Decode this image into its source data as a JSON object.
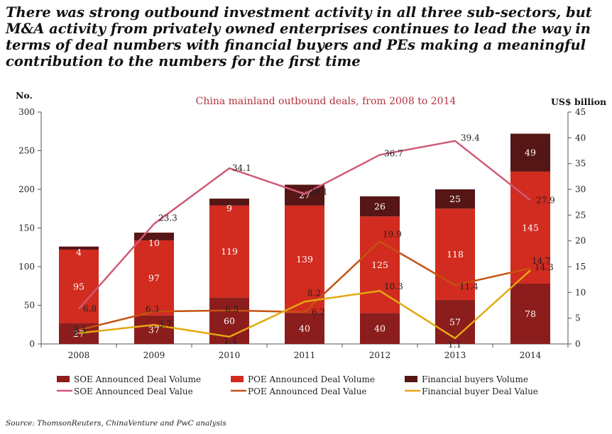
{
  "headline": "There was strong outbound investment activity in all three sub-sectors, but M&A activity from privately owned enterprises continues to lead the way in terms of deal numbers with financial buyers and PEs making a meaningful contribution to the numbers for the first time",
  "source": "Source: ThomsonReuters, ChinaVenture and PwC analysis",
  "chart_data": {
    "type": "bar",
    "title": "China mainland outbound deals, from 2008 to 2014",
    "ylabel_left": "No.",
    "ylabel_right": "US$ billion",
    "ylim_left": [
      0,
      300
    ],
    "ylim_right": [
      0,
      45
    ],
    "yticks_left": [
      0,
      50,
      100,
      150,
      200,
      250,
      300
    ],
    "yticks_right": [
      0,
      5,
      10,
      15,
      20,
      25,
      30,
      35,
      40,
      45
    ],
    "grid": false,
    "legend_position": "bottom",
    "categories": [
      "2008",
      "2009",
      "2010",
      "2011",
      "2012",
      "2013",
      "2014"
    ],
    "stacked_series": [
      {
        "name": "SOE Announced Deal Volume",
        "color": "#8c1d1d",
        "values": [
          27,
          37,
          60,
          40,
          40,
          57,
          78
        ]
      },
      {
        "name": "POE Announced Deal Volume",
        "color": "#d22b1f",
        "values": [
          95,
          97,
          119,
          139,
          125,
          118,
          145
        ]
      },
      {
        "name": "Financial buyers Volume",
        "color": "#561616",
        "values": [
          4,
          10,
          9,
          27,
          26,
          25,
          49
        ]
      }
    ],
    "line_series": [
      {
        "name": "SOE Announced Deal Value",
        "color": "#d05a75",
        "values": [
          6.8,
          23.3,
          34.1,
          29.1,
          36.7,
          39.4,
          27.9
        ]
      },
      {
        "name": "POE Announced Deal Value",
        "color": "#c45212",
        "values": [
          2.7,
          6.3,
          6.5,
          6.2,
          19.9,
          11.4,
          14.7
        ]
      },
      {
        "name": "Financial buyer Deal Value",
        "color": "#e2a80f",
        "values": [
          2.1,
          3.7,
          1.4,
          8.2,
          10.3,
          1.1,
          14.3
        ]
      }
    ]
  }
}
